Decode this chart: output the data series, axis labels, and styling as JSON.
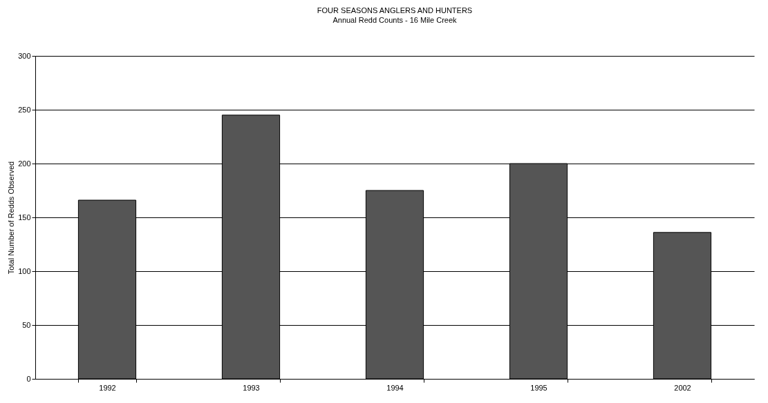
{
  "chart_data": {
    "type": "bar",
    "title": "FOUR SEASONS ANGLERS AND HUNTERS",
    "subtitle": "Annual Redd Counts - 16 Mile Creek",
    "ylabel": "Total Number of Redds Observed",
    "categories": [
      "1992",
      "1993",
      "1994",
      "1995",
      "2002"
    ],
    "values": [
      166,
      245,
      175,
      200,
      136
    ],
    "color": "#555555",
    "ylim": [
      0,
      300
    ],
    "yticks": [
      0,
      50,
      100,
      150,
      200,
      250,
      300
    ],
    "grid": "y"
  }
}
